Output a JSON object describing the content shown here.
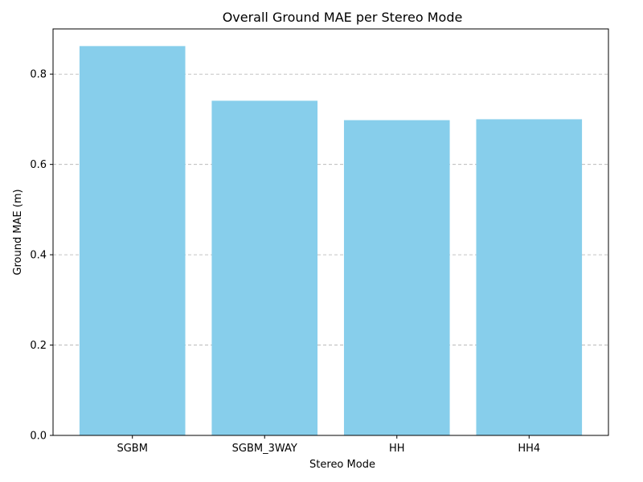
{
  "chart_data": {
    "type": "bar",
    "title": "Overall Ground MAE per Stereo Mode",
    "xlabel": "Stereo Mode",
    "ylabel": "Ground MAE (m)",
    "categories": [
      "SGBM",
      "SGBM_3WAY",
      "HH",
      "HH4"
    ],
    "values": [
      0.862,
      0.741,
      0.698,
      0.7
    ],
    "ylim": [
      0,
      0.9
    ],
    "yticks": [
      0.0,
      0.2,
      0.4,
      0.6,
      0.8
    ],
    "ytick_labels": [
      "0.0",
      "0.2",
      "0.4",
      "0.6",
      "0.8"
    ],
    "grid": "y-dashed",
    "bar_color": "#87CEEB",
    "grid_color": "#b0b0b0"
  }
}
